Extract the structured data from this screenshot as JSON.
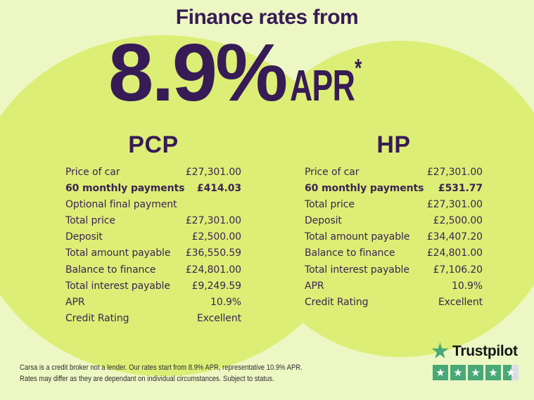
{
  "header": {
    "title": "Finance rates from",
    "rate": "8.9%",
    "apr_label": "APR",
    "apr_asterisk": "*"
  },
  "columns": [
    {
      "heading": "PCP",
      "rows": [
        {
          "label": "Price of car",
          "value": "£27,301.00"
        },
        {
          "label": "60 monthly payments",
          "value": "£414.03",
          "bold": true
        },
        {
          "label": "Optional final payment",
          "value": ""
        },
        {
          "label": "Total price",
          "value": "£27,301.00"
        },
        {
          "label": "Deposit",
          "value": "£2,500.00"
        },
        {
          "label": "Total amount payable",
          "value": "£36,550.59"
        },
        {
          "label": "Balance to finance",
          "value": "£24,801.00"
        },
        {
          "label": "Total interest payable",
          "value": "£9,249.59"
        },
        {
          "label": "APR",
          "value": "10.9%"
        },
        {
          "label": "Credit Rating",
          "value": "Excellent"
        }
      ]
    },
    {
      "heading": "HP",
      "rows": [
        {
          "label": "Price of car",
          "value": "£27,301.00"
        },
        {
          "label": "60 monthly payments",
          "value": "£531.77",
          "bold": true
        },
        {
          "label": "Total price",
          "value": "£27,301.00"
        },
        {
          "label": "Deposit",
          "value": "£2,500.00"
        },
        {
          "label": "Total amount payable",
          "value": "£34,407.20"
        },
        {
          "label": "Balance to finance",
          "value": "£24,801.00"
        },
        {
          "label": "Total interest payable",
          "value": "£7,106.20"
        },
        {
          "label": "APR",
          "value": "10.9%"
        },
        {
          "label": "Credit Rating",
          "value": "Excellent"
        }
      ]
    }
  ],
  "disclaimer": {
    "line1": "Carsa is a credit broker not a lender. Our rates start from 8.9% APR, representative 10.9% APR.",
    "line2": "Rates may differ as they are dependant on individual circumstances. Subject to status."
  },
  "trustpilot": {
    "brand": "Trustpilot",
    "stars_filled": 4.5,
    "stars_total": 5,
    "star_glyph": "★"
  },
  "colors": {
    "background": "#edf7c4",
    "circle": "#dcee75",
    "heading_purple": "#371b56",
    "table_text": "#3a2453",
    "disclaimer_text": "#2d2d2d",
    "trustpilot_green": "#49a877",
    "trustpilot_gray": "#dcdce6"
  }
}
